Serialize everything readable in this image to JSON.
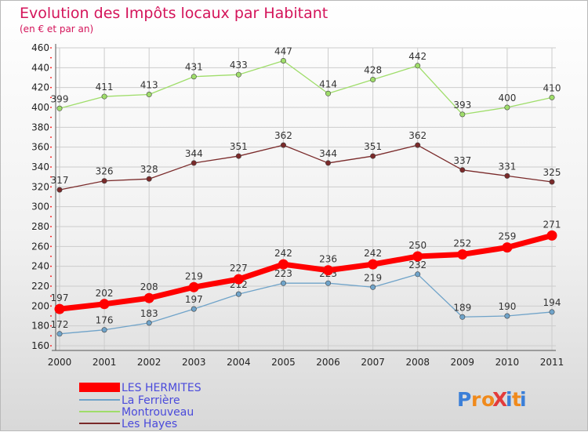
{
  "chart_data": {
    "type": "line",
    "title": "Evolution des Impôts locaux par Habitant",
    "subtitle": "(en € et par an)",
    "xlabel": "",
    "ylabel": "",
    "x": [
      "2000",
      "2001",
      "2002",
      "2003",
      "2004",
      "2005",
      "2006",
      "2007",
      "2008",
      "2009",
      "2010",
      "2011"
    ],
    "yticks": [
      "160",
      "180",
      "200",
      "220",
      "240",
      "260",
      "280",
      "300",
      "320",
      "340",
      "360",
      "380",
      "400",
      "420",
      "440",
      "460"
    ],
    "ylim": [
      160,
      460
    ],
    "grid": true,
    "legend_position": "bottom-left",
    "series": [
      {
        "name": "LES HERMITES",
        "color": "#ff0000",
        "values": [
          197,
          202,
          208,
          219,
          227,
          242,
          236,
          242,
          250,
          252,
          259,
          271
        ],
        "labels": [
          "197",
          "202",
          "208",
          "219",
          "227",
          "242",
          "236",
          "242",
          "250",
          "252",
          "259",
          "271"
        ]
      },
      {
        "name": "La Ferrière",
        "color": "#6fa3c9",
        "values": [
          172,
          176,
          183,
          197,
          212,
          223,
          223,
          219,
          232,
          189,
          190,
          194
        ],
        "labels": [
          "172",
          "176",
          "183",
          "197",
          "212",
          "223",
          "223",
          "219",
          "232",
          "189",
          "190",
          "194"
        ]
      },
      {
        "name": "Montrouveau",
        "color": "#9fdd6a",
        "values": [
          399,
          411,
          413,
          431,
          433,
          447,
          414,
          428,
          442,
          393,
          400,
          410
        ],
        "labels": [
          "399",
          "411",
          "413",
          "431",
          "433",
          "447",
          "414",
          "428",
          "442",
          "393",
          "400",
          "410"
        ]
      },
      {
        "name": "Les Hayes",
        "color": "#7a2a2a",
        "values": [
          317,
          326,
          328,
          344,
          351,
          362,
          344,
          351,
          362,
          337,
          331,
          325
        ],
        "labels": [
          "317",
          "326",
          "328",
          "344",
          "351",
          "362",
          "344",
          "351",
          "362",
          "337",
          "331",
          "325"
        ]
      }
    ]
  },
  "colors": {
    "title": "#d4145a",
    "gridline": "#cccccc",
    "axis_dots": "#ff0000",
    "label_text": "#333333"
  },
  "branding": {
    "logo_text": "ProXiti",
    "logo_colors": [
      "#3b7fd8",
      "#f08a1c",
      "#f08a1c",
      "#e33b3b",
      "#3b7fd8",
      "#f08a1c",
      "#3b7fd8"
    ]
  }
}
